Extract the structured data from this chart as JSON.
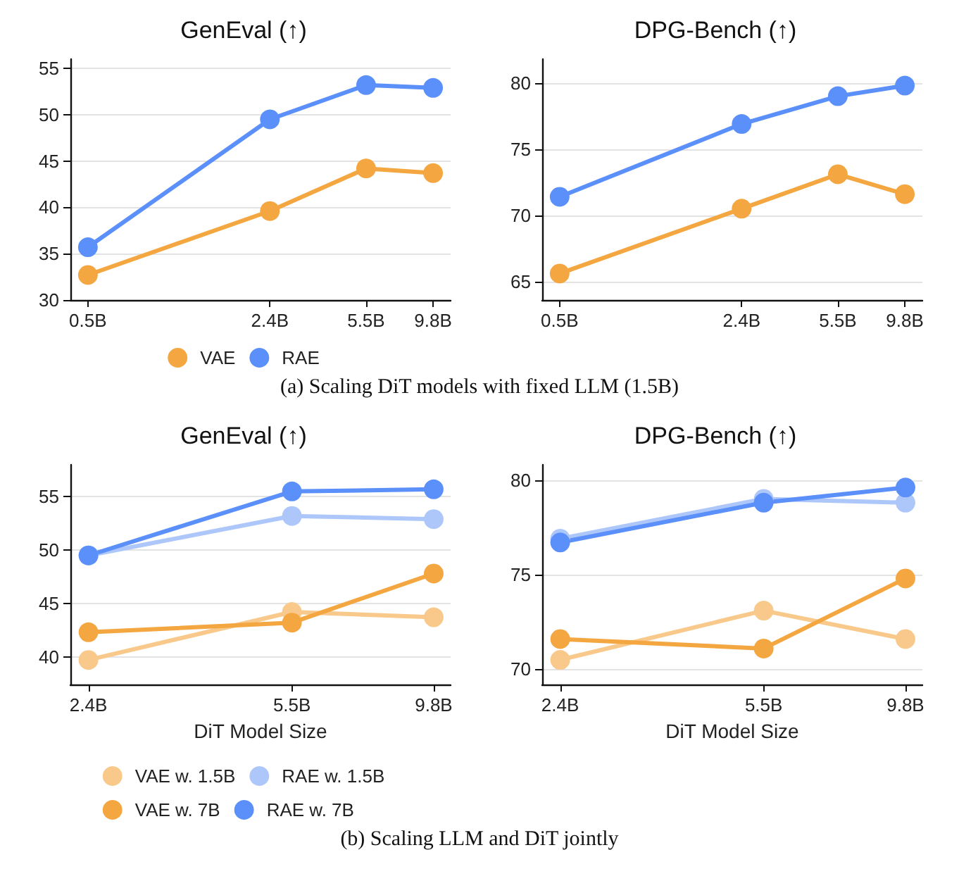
{
  "chart_data": [
    {
      "type": "line",
      "title": "GenEval (↑)",
      "x": [
        0.5,
        2.4,
        5.5,
        9.8
      ],
      "log": "x",
      "xlim": [
        0.43,
        11.4
      ],
      "xticks": [
        {
          "value": 0.5,
          "label": "0.5B"
        },
        {
          "value": 2.4,
          "label": "2.4B"
        },
        {
          "value": 5.5,
          "label": "5.5B"
        },
        {
          "value": 9.8,
          "label": "9.8B"
        }
      ],
      "ylim": [
        30,
        56
      ],
      "yticks": [
        30,
        35,
        40,
        45,
        50,
        55
      ],
      "grid": "y",
      "marker": "circle",
      "line_style": "solid",
      "legend": "bottom",
      "annotations": [
        "(a) Scaling DiT models with fixed LLM (1.5B)"
      ],
      "series": [
        {
          "name": "VAE",
          "color": "#f4a640",
          "values": [
            32.7,
            39.6,
            44.2,
            43.7
          ]
        },
        {
          "name": "RAE",
          "color": "#5b8ff9",
          "values": [
            35.7,
            49.5,
            53.2,
            52.9
          ]
        }
      ]
    },
    {
      "type": "line",
      "title": "DPG-Bench (↑)",
      "x": [
        0.5,
        2.4,
        5.5,
        9.8
      ],
      "log": "x",
      "xlim": [
        0.43,
        11.4
      ],
      "xticks": [
        {
          "value": 0.5,
          "label": "0.5B"
        },
        {
          "value": 2.4,
          "label": "2.4B"
        },
        {
          "value": 5.5,
          "label": "5.5B"
        },
        {
          "value": 9.8,
          "label": "9.8B"
        }
      ],
      "ylim": [
        63.6,
        81.8
      ],
      "yticks": [
        65,
        70,
        75,
        80
      ],
      "grid": "y",
      "marker": "circle",
      "line_style": "solid",
      "series": [
        {
          "color": "#f4a640",
          "values": [
            65.6,
            70.5,
            73.1,
            71.6
          ]
        },
        {
          "color": "#5b8ff9",
          "values": [
            71.4,
            76.9,
            79.0,
            79.8
          ]
        }
      ]
    },
    {
      "type": "line",
      "title": "GenEval (↑)",
      "xlabel": "DiT Model Size",
      "x": [
        2.4,
        5.5,
        9.8
      ],
      "log": "x",
      "xlim": [
        2.23,
        10.5
      ],
      "xticks": [
        {
          "value": 2.4,
          "label": "2.4B"
        },
        {
          "value": 5.5,
          "label": "5.5B"
        },
        {
          "value": 9.8,
          "label": "9.8B"
        }
      ],
      "ylim": [
        37.4,
        58
      ],
      "yticks": [
        40,
        45,
        50,
        55
      ],
      "grid": "y",
      "marker": "circle",
      "line_style": "solid",
      "legend": "bottom",
      "annotations": [
        "(b) Scaling LLM and DiT jointly"
      ],
      "series": [
        {
          "name": "VAE w. 1.5B",
          "color": "#f8c98a",
          "values": [
            39.7,
            44.2,
            43.7
          ]
        },
        {
          "name": "RAE w. 1.5B",
          "color": "#adc7fb",
          "values": [
            49.5,
            53.2,
            52.9
          ]
        },
        {
          "name": "VAE w. 7B",
          "color": "#f4a640",
          "values": [
            42.3,
            43.2,
            47.8
          ]
        },
        {
          "name": "RAE w. 7B",
          "color": "#5b8ff9",
          "values": [
            49.5,
            55.5,
            55.7
          ]
        }
      ]
    },
    {
      "type": "line",
      "title": "DPG-Bench (↑)",
      "xlabel": "DiT Model Size",
      "x": [
        2.4,
        5.5,
        9.8
      ],
      "log": "x",
      "xlim": [
        2.23,
        10.5
      ],
      "xticks": [
        {
          "value": 2.4,
          "label": "2.4B"
        },
        {
          "value": 5.5,
          "label": "5.5B"
        },
        {
          "value": 9.8,
          "label": "9.8B"
        }
      ],
      "ylim": [
        69.2,
        80.8
      ],
      "yticks": [
        70,
        75,
        80
      ],
      "grid": "y",
      "marker": "circle",
      "line_style": "solid",
      "series": [
        {
          "color": "#f8c98a",
          "values": [
            70.5,
            73.1,
            71.6
          ]
        },
        {
          "color": "#adc7fb",
          "values": [
            76.9,
            79.0,
            78.8
          ]
        },
        {
          "color": "#f4a640",
          "values": [
            71.6,
            71.1,
            74.8
          ]
        },
        {
          "color": "#5b8ff9",
          "values": [
            76.7,
            78.8,
            79.6
          ]
        }
      ]
    }
  ]
}
